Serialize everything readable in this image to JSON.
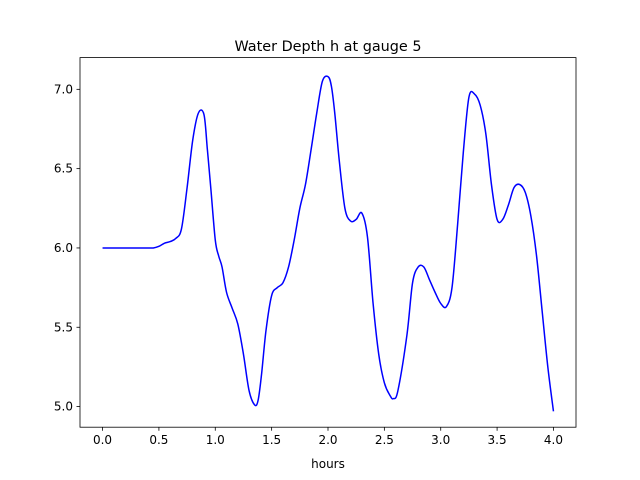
{
  "chart_data": {
    "type": "line",
    "title": "Water Depth h at gauge 5",
    "xlabel": "hours",
    "ylabel": "",
    "xlim": [
      -0.2,
      4.2
    ],
    "ylim": [
      4.87,
      7.2
    ],
    "xticks": [
      0.0,
      0.5,
      1.0,
      1.5,
      2.0,
      2.5,
      3.0,
      3.5,
      4.0
    ],
    "xtick_labels": [
      "0.0",
      "0.5",
      "1.0",
      "1.5",
      "2.0",
      "2.5",
      "3.0",
      "3.5",
      "4.0"
    ],
    "yticks": [
      5.0,
      5.5,
      6.0,
      6.5,
      7.0
    ],
    "ytick_labels": [
      "5.0",
      "5.5",
      "6.0",
      "6.5",
      "7.0"
    ],
    "grid": false,
    "legend": "none",
    "series": [
      {
        "color": "#0000ff",
        "x": [
          0.0,
          0.1,
          0.2,
          0.3,
          0.4,
          0.45,
          0.5,
          0.55,
          0.6,
          0.65,
          0.7,
          0.75,
          0.8,
          0.85,
          0.9,
          0.93,
          0.96,
          1.0,
          1.03,
          1.06,
          1.1,
          1.15,
          1.2,
          1.25,
          1.3,
          1.35,
          1.38,
          1.41,
          1.45,
          1.5,
          1.55,
          1.6,
          1.65,
          1.7,
          1.75,
          1.8,
          1.85,
          1.9,
          1.95,
          2.0,
          2.03,
          2.06,
          2.1,
          2.15,
          2.2,
          2.25,
          2.3,
          2.35,
          2.4,
          2.45,
          2.5,
          2.55,
          2.58,
          2.62,
          2.7,
          2.75,
          2.8,
          2.85,
          2.9,
          2.95,
          3.0,
          3.05,
          3.1,
          3.15,
          3.2,
          3.25,
          3.3,
          3.35,
          3.4,
          3.45,
          3.5,
          3.55,
          3.6,
          3.65,
          3.7,
          3.75,
          3.8,
          3.85,
          3.9,
          3.95,
          4.0
        ],
        "y": [
          6.0,
          6.0,
          6.0,
          6.0,
          6.0,
          6.0,
          6.01,
          6.03,
          6.04,
          6.06,
          6.12,
          6.38,
          6.68,
          6.85,
          6.84,
          6.62,
          6.38,
          6.05,
          5.95,
          5.88,
          5.72,
          5.62,
          5.52,
          5.33,
          5.1,
          5.01,
          5.04,
          5.2,
          5.48,
          5.7,
          5.75,
          5.78,
          5.88,
          6.05,
          6.25,
          6.4,
          6.62,
          6.85,
          7.05,
          7.08,
          7.02,
          6.85,
          6.55,
          6.25,
          6.17,
          6.18,
          6.22,
          6.07,
          5.65,
          5.33,
          5.15,
          5.07,
          5.05,
          5.1,
          5.45,
          5.78,
          5.88,
          5.88,
          5.8,
          5.72,
          5.65,
          5.63,
          5.75,
          6.15,
          6.6,
          6.95,
          6.97,
          6.9,
          6.72,
          6.4,
          6.18,
          6.18,
          6.27,
          6.38,
          6.4,
          6.35,
          6.2,
          5.95,
          5.6,
          5.25,
          4.97
        ]
      }
    ]
  }
}
